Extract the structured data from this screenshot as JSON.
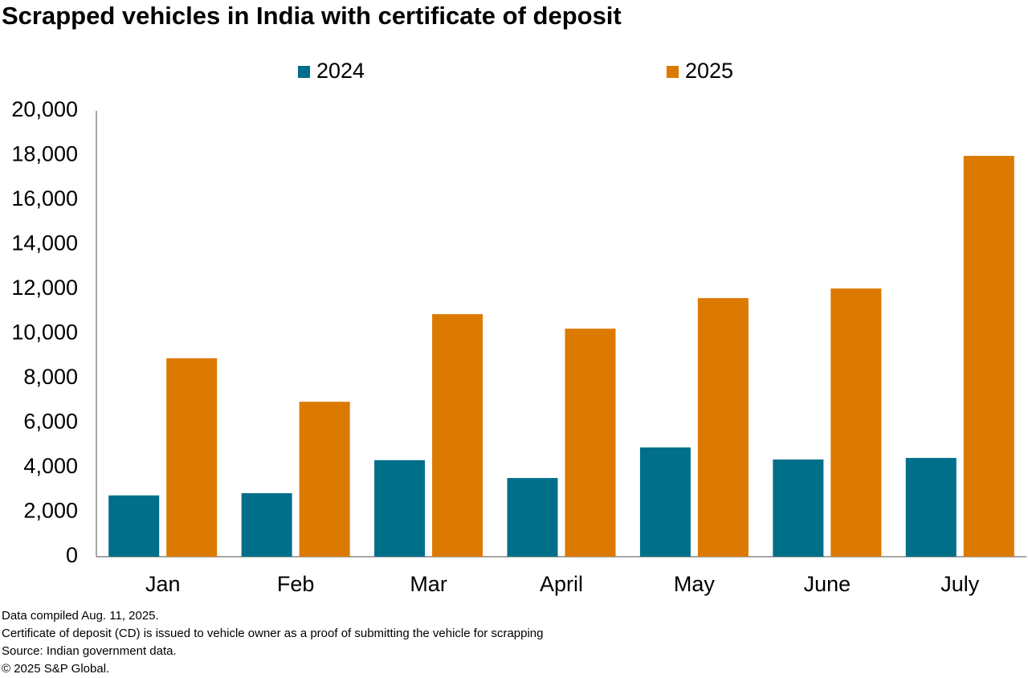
{
  "chart_data": {
    "type": "bar",
    "title": "Scrapped vehicles in India with certificate of deposit",
    "categories": [
      "Jan",
      "Feb",
      "Mar",
      "April",
      "May",
      "June",
      "July"
    ],
    "series": [
      {
        "name": "2024",
        "color": "#006f8a",
        "values": [
          2750,
          2850,
          4330,
          3530,
          4900,
          4360,
          4430
        ]
      },
      {
        "name": "2025",
        "color": "#dc7900",
        "values": [
          8900,
          6950,
          10880,
          10230,
          11600,
          12030,
          17980
        ]
      }
    ],
    "ylim": [
      0,
      20000
    ],
    "yticks": [
      0,
      {
        "value": 2000,
        "label": "2,000"
      },
      {
        "value": 4000,
        "label": "4,000"
      },
      {
        "value": 6000,
        "label": "6,000"
      },
      {
        "value": 8000,
        "label": "8,000"
      },
      {
        "value": 10000,
        "label": "10,000"
      },
      {
        "value": 12000,
        "label": "12,000"
      },
      {
        "value": 14000,
        "label": "14,000"
      },
      {
        "value": 16000,
        "label": "16,000"
      },
      {
        "value": 18000,
        "label": "18,000"
      },
      {
        "value": 20000,
        "label": "20,000"
      }
    ],
    "grid": false,
    "legend": "top",
    "notes": [
      "Data compiled Aug. 11, 2025.",
      "Certificate of deposit (CD) is issued to vehicle owner as a proof of submitting the vehicle for scrapping",
      "Source: Indian government data.",
      "© 2025 S&P Global."
    ]
  }
}
